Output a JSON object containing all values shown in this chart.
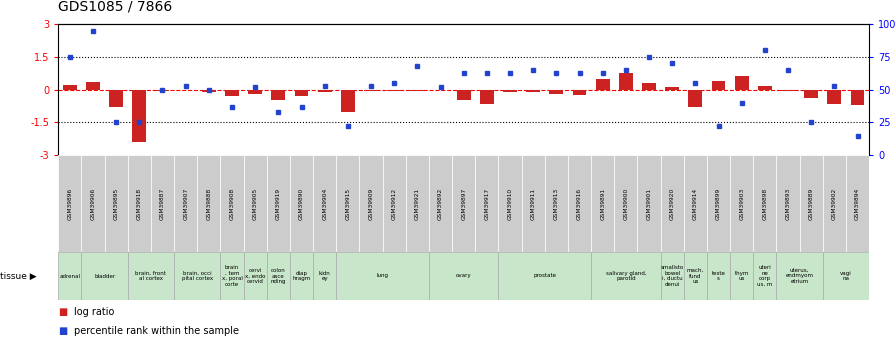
{
  "title": "GDS1085 / 7866",
  "samples": [
    "GSM39896",
    "GSM39906",
    "GSM39895",
    "GSM39918",
    "GSM39887",
    "GSM39907",
    "GSM39888",
    "GSM39908",
    "GSM39905",
    "GSM39919",
    "GSM39890",
    "GSM39904",
    "GSM39915",
    "GSM39909",
    "GSM39912",
    "GSM39921",
    "GSM39892",
    "GSM39897",
    "GSM39917",
    "GSM39910",
    "GSM39911",
    "GSM39913",
    "GSM39916",
    "GSM39891",
    "GSM39900",
    "GSM39901",
    "GSM39920",
    "GSM39914",
    "GSM39899",
    "GSM39903",
    "GSM39898",
    "GSM39893",
    "GSM39889",
    "GSM39902",
    "GSM39894"
  ],
  "log_ratio": [
    0.2,
    0.35,
    -0.8,
    -2.4,
    -0.08,
    0.0,
    -0.12,
    -0.3,
    -0.18,
    -0.45,
    -0.28,
    -0.12,
    -1.0,
    -0.05,
    -0.04,
    -0.04,
    0.0,
    -0.45,
    -0.65,
    -0.1,
    -0.12,
    -0.18,
    -0.22,
    0.5,
    0.78,
    0.32,
    0.14,
    -0.8,
    0.42,
    0.62,
    0.18,
    -0.04,
    -0.38,
    -0.65,
    -0.68
  ],
  "percentile_rank": [
    75,
    95,
    25,
    25,
    50,
    53,
    50,
    37,
    52,
    33,
    37,
    53,
    22,
    53,
    55,
    68,
    52,
    63,
    63,
    63,
    65,
    63,
    63,
    63,
    65,
    75,
    70,
    55,
    22,
    40,
    80,
    65,
    25,
    53,
    15
  ],
  "tissues": [
    {
      "label": "adrenal",
      "start": 0,
      "end": 1
    },
    {
      "label": "bladder",
      "start": 1,
      "end": 3
    },
    {
      "label": "brain, front\nal cortex",
      "start": 3,
      "end": 5
    },
    {
      "label": "brain, occi\npital cortex",
      "start": 5,
      "end": 7
    },
    {
      "label": "brain\n, tem\nx, poral\ncorte",
      "start": 7,
      "end": 8
    },
    {
      "label": "cervi\nx, endo\ncervid",
      "start": 8,
      "end": 9
    },
    {
      "label": "colon\nasce\nnding",
      "start": 9,
      "end": 10
    },
    {
      "label": "diap\nhragm",
      "start": 10,
      "end": 11
    },
    {
      "label": "kidn\ney",
      "start": 11,
      "end": 12
    },
    {
      "label": "lung",
      "start": 12,
      "end": 16
    },
    {
      "label": "ovary",
      "start": 16,
      "end": 19
    },
    {
      "label": "prostate",
      "start": 19,
      "end": 23
    },
    {
      "label": "salivary gland,\nparotid",
      "start": 23,
      "end": 26
    },
    {
      "label": "smallsto\nbowel\ni, ductu\ndenui",
      "start": 26,
      "end": 27
    },
    {
      "label": "mach,\nfund\nus",
      "start": 27,
      "end": 28
    },
    {
      "label": "teste\ns",
      "start": 28,
      "end": 29
    },
    {
      "label": "thym\nus",
      "start": 29,
      "end": 30
    },
    {
      "label": "uteri\nne\ncorp\nus, m",
      "start": 30,
      "end": 31
    },
    {
      "label": "uterus,\nendmyom\netrium",
      "start": 31,
      "end": 33
    },
    {
      "label": "vagi\nna",
      "start": 33,
      "end": 35
    }
  ],
  "ylim": [
    -3,
    3
  ],
  "y2lim": [
    0,
    100
  ],
  "yticks_left": [
    -3,
    -1.5,
    0,
    1.5,
    3
  ],
  "ytick_labels_left": [
    "-3",
    "-1.5",
    "0",
    "1.5",
    "3"
  ],
  "yticks_right": [
    0,
    25,
    50,
    75,
    100
  ],
  "ytick_labels_right": [
    "0",
    "25",
    "50",
    "75",
    "100%"
  ],
  "bar_color": "#cc2222",
  "dot_color": "#2244cc",
  "bg_color": "#ffffff",
  "tissue_color": "#c8e6c9",
  "tissue_border": "#aaaaaa",
  "xticklabel_bg": "#cccccc"
}
